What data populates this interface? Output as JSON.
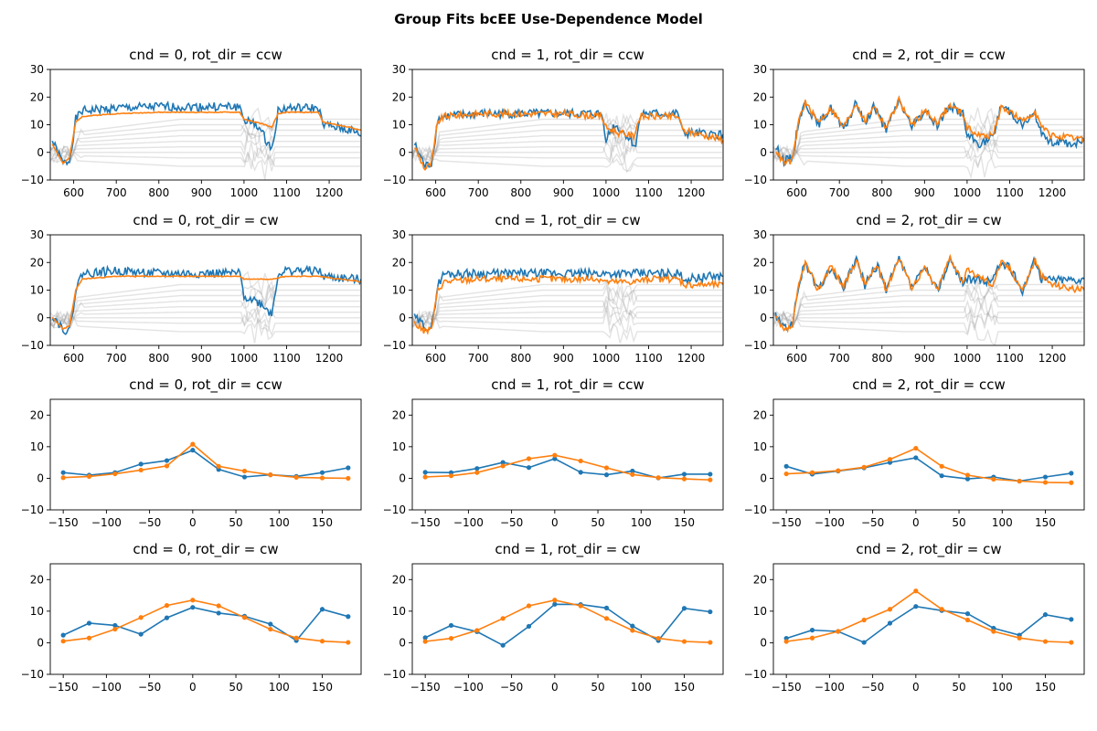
{
  "figure": {
    "suptitle": "Group Fits bcEE Use-Dependence Model"
  },
  "colors": {
    "observed": "#1f77b4",
    "model": "#ff7f0e",
    "components": "#9a9a9a"
  },
  "chart_data": [
    {
      "type": "line",
      "title": "cnd = 0, rot_dir = ccw",
      "xlim": [
        545,
        1275
      ],
      "ylim": [
        -10,
        30
      ],
      "xticks": [
        600,
        700,
        800,
        900,
        1000,
        1100,
        1200
      ],
      "yticks": [
        -10,
        0,
        10,
        20,
        30
      ],
      "series": [
        {
          "role": "observed",
          "x": [
            550,
            575,
            590,
            605,
            620,
            700,
            800,
            900,
            990,
            1000,
            1010,
            1030,
            1050,
            1065,
            1080,
            1100,
            1175,
            1185,
            1250,
            1275
          ],
          "y": [
            4,
            -4,
            -3,
            12,
            15,
            16,
            16.5,
            16.5,
            16.5,
            12,
            11,
            10,
            5,
            1,
            15,
            16,
            16,
            10,
            8,
            6
          ]
        },
        {
          "role": "model",
          "x": [
            550,
            575,
            590,
            605,
            620,
            700,
            800,
            900,
            990,
            1000,
            1050,
            1065,
            1080,
            1100,
            1175,
            1185,
            1250,
            1275
          ],
          "y": [
            3,
            -4,
            -2,
            11,
            13,
            14,
            14.5,
            14.5,
            14.5,
            12,
            10,
            9,
            14,
            14.5,
            14.5,
            11,
            9,
            8
          ]
        }
      ]
    },
    {
      "type": "line",
      "title": "cnd = 1, rot_dir = ccw",
      "xlim": [
        545,
        1275
      ],
      "ylim": [
        -10,
        30
      ],
      "xticks": [
        600,
        700,
        800,
        900,
        1000,
        1100,
        1200
      ],
      "yticks": [
        -10,
        0,
        10,
        20,
        30
      ],
      "series": [
        {
          "role": "observed",
          "x": [
            550,
            575,
            590,
            605,
            620,
            700,
            800,
            900,
            990,
            1000,
            1020,
            1050,
            1070,
            1080,
            1100,
            1170,
            1180,
            1250,
            1275
          ],
          "y": [
            3,
            -5,
            -4,
            12,
            13,
            14,
            14,
            14,
            14,
            5,
            10,
            6,
            2,
            14,
            14,
            14,
            7,
            6.5,
            6.5
          ]
        },
        {
          "role": "model",
          "x": [
            550,
            575,
            590,
            605,
            620,
            700,
            800,
            900,
            990,
            1000,
            1030,
            1065,
            1080,
            1100,
            1170,
            1180,
            1250,
            1275
          ],
          "y": [
            2,
            -6,
            -4,
            11,
            13,
            14,
            14,
            14,
            13,
            9,
            7,
            6,
            13,
            13,
            13,
            8,
            5.5,
            4.5
          ]
        }
      ]
    },
    {
      "type": "line",
      "title": "cnd = 2, rot_dir = ccw",
      "xlim": [
        545,
        1275
      ],
      "ylim": [
        -10,
        30
      ],
      "xticks": [
        600,
        700,
        800,
        900,
        1000,
        1100,
        1200
      ],
      "yticks": [
        -10,
        0,
        10,
        20,
        30
      ],
      "series": [
        {
          "role": "observed",
          "x": [
            550,
            570,
            590,
            605,
            620,
            650,
            680,
            710,
            740,
            760,
            780,
            810,
            840,
            870,
            900,
            930,
            960,
            990,
            1000,
            1030,
            1060,
            1080,
            1100,
            1130,
            1160,
            1175,
            1200,
            1250,
            1275
          ],
          "y": [
            2,
            -3,
            -2,
            12,
            18,
            10,
            16,
            8,
            18,
            10,
            17,
            8,
            19,
            9,
            15,
            10,
            17,
            14,
            6,
            3,
            5,
            17,
            15,
            10,
            14,
            6,
            4,
            3,
            4
          ]
        },
        {
          "role": "model",
          "x": [
            550,
            570,
            590,
            605,
            620,
            650,
            680,
            710,
            740,
            760,
            780,
            810,
            840,
            870,
            900,
            930,
            960,
            990,
            1000,
            1030,
            1060,
            1080,
            1100,
            1130,
            1160,
            1175,
            1200,
            1250,
            1275
          ],
          "y": [
            1,
            -4,
            -3,
            12,
            18,
            11,
            16,
            9,
            18,
            11,
            17,
            9,
            19,
            10,
            15,
            11,
            17,
            14,
            9,
            6,
            6,
            16,
            15,
            11,
            15,
            9,
            6,
            5,
            5
          ]
        }
      ]
    },
    {
      "type": "line",
      "title": "cnd = 0, rot_dir = cw",
      "xlim": [
        545,
        1275
      ],
      "ylim": [
        -10,
        30
      ],
      "xticks": [
        600,
        700,
        800,
        900,
        1000,
        1100,
        1200
      ],
      "yticks": [
        -10,
        0,
        10,
        20,
        30
      ],
      "series": [
        {
          "role": "observed",
          "x": [
            550,
            575,
            590,
            605,
            620,
            700,
            800,
            900,
            990,
            1000,
            1030,
            1050,
            1065,
            1080,
            1100,
            1175,
            1185,
            1250,
            1275
          ],
          "y": [
            1,
            -4,
            -5,
            10,
            16,
            17,
            16,
            16,
            16,
            8,
            6,
            4,
            1,
            16,
            17,
            17,
            15,
            14,
            14
          ]
        },
        {
          "role": "model",
          "x": [
            550,
            575,
            590,
            605,
            620,
            700,
            800,
            900,
            990,
            1000,
            1065,
            1080,
            1100,
            1175,
            1250,
            1275
          ],
          "y": [
            0,
            -4,
            -3,
            10,
            14,
            15,
            15,
            15,
            15,
            14,
            14,
            14.5,
            15,
            15,
            13.5,
            13
          ]
        }
      ]
    },
    {
      "type": "line",
      "title": "cnd = 1, rot_dir = cw",
      "xlim": [
        545,
        1275
      ],
      "ylim": [
        -10,
        30
      ],
      "xticks": [
        600,
        700,
        800,
        900,
        1000,
        1100,
        1200
      ],
      "yticks": [
        -10,
        0,
        10,
        20,
        30
      ],
      "series": [
        {
          "role": "observed",
          "x": [
            550,
            575,
            590,
            605,
            620,
            700,
            800,
            900,
            990,
            1000,
            1065,
            1080,
            1100,
            1170,
            1185,
            1250,
            1275
          ],
          "y": [
            0,
            -3,
            -4,
            12,
            16,
            16,
            16,
            16,
            16,
            16,
            16,
            16,
            16,
            16,
            14,
            15,
            15
          ]
        },
        {
          "role": "model",
          "x": [
            550,
            575,
            590,
            605,
            620,
            700,
            800,
            900,
            990,
            1000,
            1065,
            1080,
            1100,
            1170,
            1185,
            1250,
            1275
          ],
          "y": [
            -2,
            -5,
            -4,
            10,
            13,
            14,
            14,
            14,
            14,
            13,
            13,
            13.5,
            14,
            14,
            12,
            12,
            12
          ]
        }
      ]
    },
    {
      "type": "line",
      "title": "cnd = 2, rot_dir = cw",
      "xlim": [
        545,
        1275
      ],
      "ylim": [
        -10,
        30
      ],
      "xticks": [
        600,
        700,
        800,
        900,
        1000,
        1100,
        1200
      ],
      "yticks": [
        -10,
        0,
        10,
        20,
        30
      ],
      "series": [
        {
          "role": "observed",
          "x": [
            550,
            570,
            590,
            605,
            620,
            650,
            680,
            710,
            740,
            760,
            790,
            810,
            840,
            870,
            900,
            930,
            960,
            990,
            1000,
            1040,
            1060,
            1080,
            1100,
            1130,
            1160,
            1175,
            1200,
            1250,
            1275
          ],
          "y": [
            1,
            -4,
            -2,
            12,
            20,
            10,
            18,
            11,
            21,
            12,
            19,
            10,
            21,
            11,
            18,
            10,
            21,
            13,
            14,
            13,
            14,
            20,
            18,
            10,
            21,
            14,
            14,
            14,
            14
          ]
        },
        {
          "role": "model",
          "x": [
            550,
            570,
            590,
            605,
            620,
            650,
            680,
            710,
            740,
            760,
            790,
            810,
            840,
            870,
            900,
            930,
            960,
            990,
            1000,
            1040,
            1060,
            1080,
            1100,
            1130,
            1160,
            1175,
            1200,
            1250,
            1275
          ],
          "y": [
            0,
            -5,
            -3,
            12,
            20,
            10,
            19,
            11,
            21,
            12,
            19,
            10,
            22,
            11,
            18,
            10,
            22,
            13,
            17,
            14,
            12,
            20,
            18,
            10,
            21,
            15,
            12,
            10.5,
            10
          ]
        }
      ]
    },
    {
      "type": "line",
      "title": "cnd = 0, rot_dir = ccw",
      "xlim": [
        -165,
        195
      ],
      "ylim": [
        -10,
        25
      ],
      "xticks": [
        -150,
        -100,
        -50,
        0,
        50,
        100,
        150
      ],
      "yticks": [
        -10,
        0,
        10,
        20
      ],
      "x": [
        -150,
        -120,
        -90,
        -60,
        -30,
        0,
        30,
        60,
        90,
        120,
        150,
        180
      ],
      "series": [
        {
          "role": "observed",
          "values": [
            1.8,
            1.0,
            1.8,
            4.5,
            5.6,
            8.9,
            2.8,
            0.4,
            1.1,
            0.6,
            1.8,
            3.3
          ]
        },
        {
          "role": "model",
          "values": [
            0.2,
            0.6,
            1.4,
            2.6,
            3.9,
            10.8,
            3.8,
            2.3,
            1.1,
            0.3,
            0.1,
            0.0
          ]
        }
      ]
    },
    {
      "type": "line",
      "title": "cnd = 1, rot_dir = ccw",
      "xlim": [
        -165,
        195
      ],
      "ylim": [
        -10,
        25
      ],
      "xticks": [
        -150,
        -100,
        -50,
        0,
        50,
        100,
        150
      ],
      "yticks": [
        -10,
        0,
        10,
        20
      ],
      "x": [
        -150,
        -120,
        -90,
        -60,
        -30,
        0,
        30,
        60,
        90,
        120,
        150,
        180
      ],
      "series": [
        {
          "role": "observed",
          "values": [
            1.9,
            1.8,
            3.1,
            5.0,
            3.4,
            6.2,
            1.9,
            1.1,
            2.3,
            0.1,
            1.3,
            1.3
          ]
        },
        {
          "role": "model",
          "values": [
            0.4,
            0.8,
            1.8,
            3.9,
            6.2,
            7.3,
            5.5,
            3.3,
            1.2,
            0.2,
            -0.2,
            -0.5
          ]
        }
      ]
    },
    {
      "type": "line",
      "title": "cnd = 2, rot_dir = ccw",
      "xlim": [
        -165,
        195
      ],
      "ylim": [
        -10,
        25
      ],
      "xticks": [
        -150,
        -100,
        -50,
        0,
        50,
        100,
        150
      ],
      "yticks": [
        -10,
        0,
        10,
        20
      ],
      "x": [
        -150,
        -120,
        -90,
        -60,
        -30,
        0,
        30,
        60,
        90,
        120,
        150,
        180
      ],
      "series": [
        {
          "role": "observed",
          "values": [
            3.8,
            1.3,
            2.3,
            3.3,
            5.0,
            6.5,
            0.8,
            -0.2,
            0.4,
            -0.9,
            0.4,
            1.6
          ]
        },
        {
          "role": "model",
          "values": [
            1.4,
            1.8,
            2.4,
            3.5,
            6.0,
            9.5,
            3.8,
            1.0,
            -0.3,
            -0.9,
            -1.3,
            -1.4
          ]
        }
      ]
    },
    {
      "type": "line",
      "title": "cnd = 0, rot_dir = cw",
      "xlim": [
        -165,
        195
      ],
      "ylim": [
        -10,
        25
      ],
      "xticks": [
        -150,
        -100,
        -50,
        0,
        50,
        100,
        150
      ],
      "yticks": [
        -10,
        0,
        10,
        20
      ],
      "x": [
        -150,
        -120,
        -90,
        -60,
        -30,
        0,
        30,
        60,
        90,
        120,
        150,
        180
      ],
      "series": [
        {
          "role": "observed",
          "values": [
            2.4,
            6.2,
            5.5,
            2.7,
            7.9,
            11.2,
            9.4,
            8.4,
            5.9,
            0.7,
            10.6,
            8.3
          ]
        },
        {
          "role": "model",
          "values": [
            0.5,
            1.5,
            4.3,
            8.0,
            11.8,
            13.5,
            11.7,
            8.0,
            4.3,
            1.5,
            0.5,
            0.1
          ]
        }
      ]
    },
    {
      "type": "line",
      "title": "cnd = 1, rot_dir = cw",
      "xlim": [
        -165,
        195
      ],
      "ylim": [
        -10,
        25
      ],
      "xticks": [
        -150,
        -100,
        -50,
        0,
        50,
        100,
        150
      ],
      "yticks": [
        -10,
        0,
        10,
        20
      ],
      "x": [
        -150,
        -120,
        -90,
        -60,
        -30,
        0,
        30,
        60,
        90,
        120,
        150,
        180
      ],
      "series": [
        {
          "role": "observed",
          "values": [
            1.6,
            5.5,
            3.5,
            -0.8,
            5.2,
            12.2,
            12.1,
            11.0,
            5.3,
            0.7,
            10.9,
            9.8
          ]
        },
        {
          "role": "model",
          "values": [
            0.4,
            1.4,
            3.9,
            7.7,
            11.7,
            13.5,
            11.7,
            7.7,
            3.9,
            1.4,
            0.4,
            0.1
          ]
        }
      ]
    },
    {
      "type": "line",
      "title": "cnd = 2, rot_dir = cw",
      "xlim": [
        -165,
        195
      ],
      "ylim": [
        -10,
        25
      ],
      "xticks": [
        -150,
        -100,
        -50,
        0,
        50,
        100,
        150
      ],
      "yticks": [
        -10,
        0,
        10,
        20
      ],
      "x": [
        -150,
        -120,
        -90,
        -60,
        -30,
        0,
        30,
        60,
        90,
        120,
        150,
        180
      ],
      "series": [
        {
          "role": "observed",
          "values": [
            1.4,
            4.0,
            3.6,
            0.1,
            6.2,
            11.5,
            10.2,
            9.2,
            4.6,
            2.4,
            8.9,
            7.4
          ]
        },
        {
          "role": "model",
          "values": [
            0.4,
            1.5,
            3.6,
            7.2,
            10.6,
            16.4,
            10.6,
            7.2,
            3.6,
            1.5,
            0.4,
            0.1
          ]
        }
      ]
    }
  ]
}
